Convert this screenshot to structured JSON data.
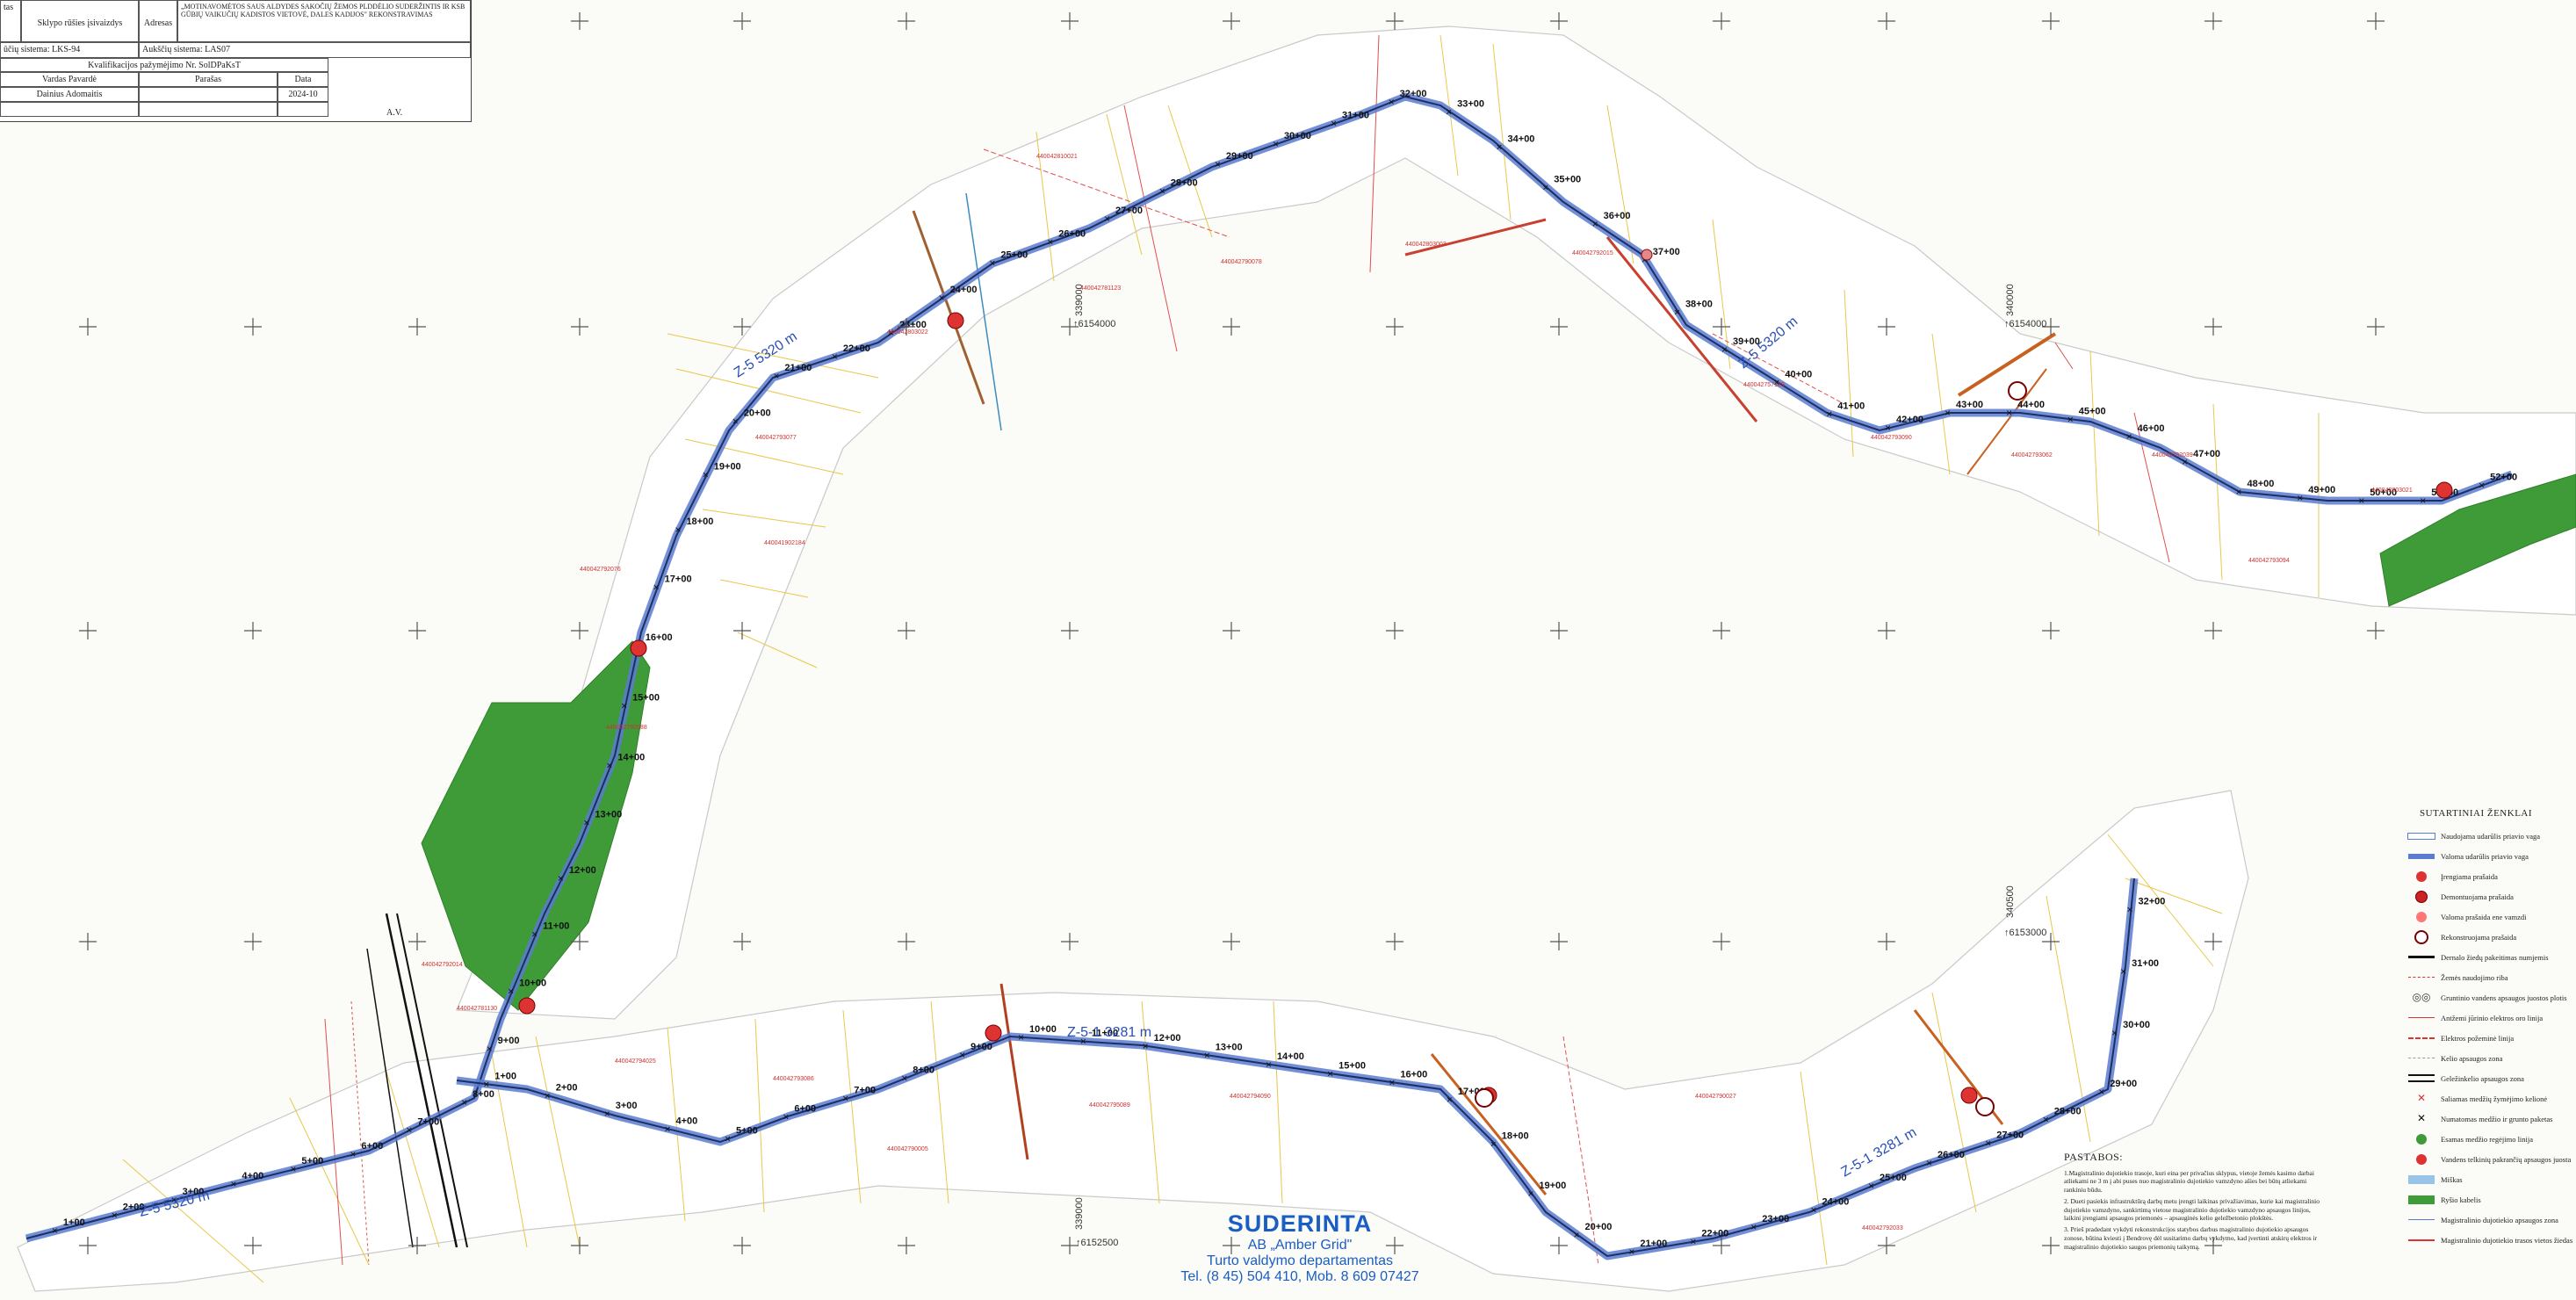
{
  "title_block": {
    "cell_left_fragment": "tas",
    "object_label": "Sklypo rūšies įsivaizdys",
    "address_label": "Adresas",
    "object_text": "„MOTINAVOMĖTOS SAUS ALDYDES SAKOČIŲ ŽEMOS PLDDĖLIO SUDERŽINTIS IR KSB GŪBIŲ VAIKUČIŲ KADISTOS VIETOVĖ, DALES KADIJOS\" REKONSTRAVIMAS",
    "coord_system": "ūčių sistema: LKS-94",
    "height_system": "Aukščių sistema: LAS07",
    "qualification": "Kvalifikacijos pažymėjimo Nr. SolDPaKsT",
    "col_name": "Vardas Pavardė",
    "col_sign": "Parašas",
    "col_date": "Data",
    "person": "Dainius Adomaitis",
    "date": "2024-10",
    "av": "A.V."
  },
  "pipelines": {
    "north_label_1": "Z-5 5320 m",
    "north_label_2": "Z-5 5320 m",
    "south_label_1": "Z-5-1 3281 m",
    "south_label_2": "Z-5-1 3281 m",
    "sw_label": "Z-5 5320 m"
  },
  "stations_north": [
    "1+00",
    "2+00",
    "3+00",
    "4+00",
    "5+00",
    "6+00",
    "7+00",
    "8+00",
    "9+00",
    "10+00",
    "11+00",
    "12+00",
    "13+00",
    "14+00",
    "15+00",
    "16+00",
    "17+00",
    "18+00",
    "19+00",
    "20+00",
    "21+00",
    "22+00",
    "23+00",
    "24+00",
    "25+00",
    "26+00",
    "27+00",
    "28+00",
    "29+00",
    "30+00",
    "31+00",
    "32+00",
    "33+00",
    "34+00",
    "35+00",
    "36+00",
    "37+00",
    "38+00",
    "39+00",
    "40+00",
    "41+00",
    "42+00",
    "43+00",
    "44+00",
    "45+00",
    "46+00",
    "47+00",
    "48+00",
    "49+00",
    "50+00",
    "51+00",
    "52+00"
  ],
  "stations_south": [
    "1+00",
    "2+00",
    "3+00",
    "4+00",
    "5+00",
    "6+00",
    "7+00",
    "8+00",
    "9+00",
    "10+00",
    "11+00",
    "12+00",
    "13+00",
    "14+00",
    "15+00",
    "16+00",
    "17+00",
    "18+00",
    "19+00",
    "20+00",
    "21+00",
    "22+00",
    "23+00",
    "24+00",
    "25+00",
    "26+00",
    "27+00",
    "28+00",
    "29+00",
    "30+00",
    "31+00",
    "32+00"
  ],
  "grid_labels": {
    "e1": "↑6154000",
    "e2": "↑6154000",
    "e3": "↑6153000",
    "e4": "↑6152500",
    "n1": "339000",
    "n2": "340000",
    "n3": "340500",
    "n4": "339000"
  },
  "approval": {
    "title": "SUDERINTA",
    "org": "AB „Amber Grid\"",
    "dept": "Turto valdymo departamentas",
    "phone": "Tel. (8 45) 504 410, Mob. 8 609 07427"
  },
  "legend": {
    "heading": "SUTARTINIAI ŽENKLAI",
    "items": [
      "Naudojama udarūlis priavio vaga",
      "Valoma udarūlis priavio vaga",
      "Įrengiama prašaida",
      "Demontuojama prašaida",
      "Valoma prašaida ene vamzdi",
      "Rekonstruojama prašaida",
      "Dernalo žiedų pakeitimas numjemis",
      "Žemės naudojimo riba",
      "Gruntinio vandens apsaugos juostos plotis",
      "Antžemi jūrinio elektros oro linija",
      "Elektros požeminė linija",
      "Kelio apsaugos zona",
      "Geležinkelio apsaugos zona",
      "Saliamas medžių žymėjimo kelionė",
      "Numatomas medžio ir grunto paketas",
      "Esamas medžio regėjimo linija",
      "Vandens telkinių pakrančių apsaugos juosta",
      "Miškas",
      "Ryšio kabelis",
      "Magistralinio dujotiekio apsaugos zona",
      "Magistralinio dujotiekio trasos vietos žiedas"
    ]
  },
  "notes": {
    "heading": "PASTABOS:",
    "p1": "1.Magistralinio dujotiekio trasoje, kuri eina per privačius sklypus, vietoje žemės kasimo darbai atliekami ne 3 m į abi puses nuo magistralinio dujotiekio vamzdyno ašies bei būtų atliekami rankiniu būdu.",
    "p2": "2. Dueti pasiekis infrastruktūrą darbų metu įrengti laikinas privažiavimas, kurie kai magistralinio dujotiekio vamzdyno, sankirtimą vietose magistralinio dujotiekio vamzdyno apsaugos linijos, laikini įrengiami apsaugos priemonės – apsauginės kelio geležbetonio plokštės.",
    "p3": "3. Prieš pradedant vykdyti rekonstrukcijos statybos darbus magistralinio dujotiekio apsaugos zonose, būtina kviesti į Bendrovę dėl susitarimo darbų vykdymo, kad įvertinti atskirų elektros ir magistralinio dujotiekio saugos priemonių taikymą."
  },
  "parcels": [
    "440042792076",
    "440042792088",
    "440042793077",
    "440041902184",
    "440042803022",
    "440042810021",
    "440042781123",
    "440042790078",
    "440042803003",
    "440042792015",
    "440042757129",
    "440042793090",
    "440042793062",
    "440042792039",
    "440042793094",
    "440042803021",
    "440042792014",
    "440042781130",
    "440042794025",
    "440042793086",
    "440042790005",
    "440042795089",
    "440042794090",
    "440042790027",
    "440042792033"
  ]
}
